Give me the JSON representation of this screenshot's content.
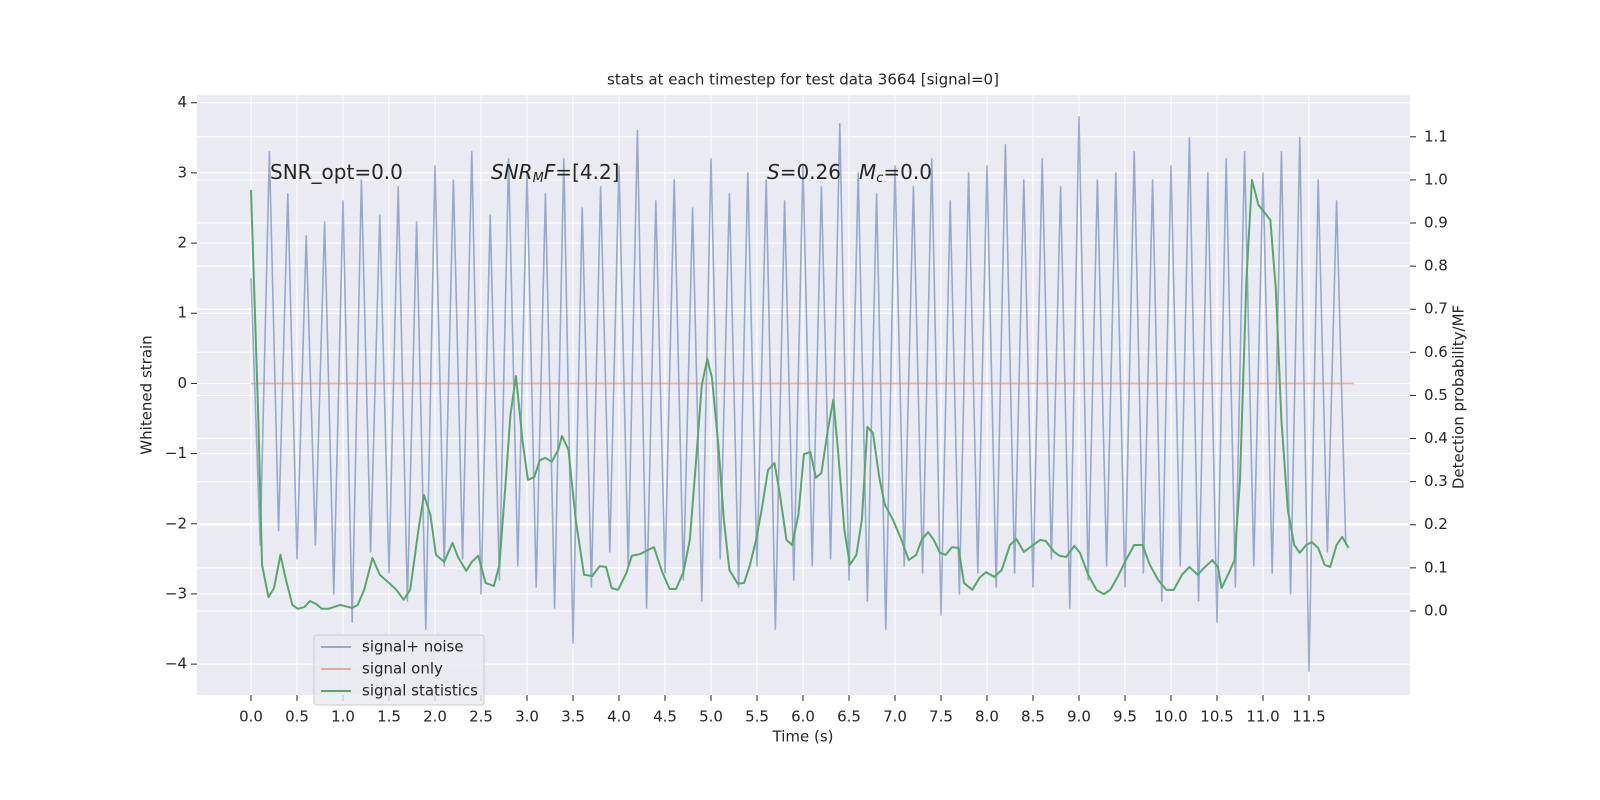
{
  "chart_data": {
    "type": "line",
    "title": "stats at each timestep for test data 3664 [signal=0]",
    "xlabel": "Time (s)",
    "ylabel": "Whitened strain",
    "y2label": "Detection probability/MF",
    "xlim": [
      -0.587,
      12.598
    ],
    "ylim": [
      -4.44,
      4.11
    ],
    "y2lim": [
      -0.195,
      1.197
    ],
    "xticks": [
      {
        "value": 0,
        "label": "0.0"
      },
      0.5,
      {
        "value": 1,
        "label": "1.0"
      },
      1.5,
      {
        "value": 2,
        "label": "2.0"
      },
      2.5,
      {
        "value": 3,
        "label": "3.0"
      },
      3.5,
      {
        "value": 4,
        "label": "4.0"
      },
      4.5,
      {
        "value": 5,
        "label": "5.0"
      },
      5.5,
      {
        "value": 6,
        "label": "6.0"
      },
      6.5,
      {
        "value": 7,
        "label": "7.0"
      },
      7.5,
      {
        "value": 8,
        "label": "8.0"
      },
      8.5,
      {
        "value": 9,
        "label": "9.0"
      },
      9.5,
      {
        "value": 10,
        "label": "10.0"
      },
      10.5,
      {
        "value": 11,
        "label": "11.0"
      },
      11.5
    ],
    "yticks": [
      {
        "value": -4,
        "label": "−4"
      },
      {
        "value": -3,
        "label": "−3"
      },
      {
        "value": -2,
        "label": "−2"
      },
      {
        "value": -1,
        "label": "−1"
      },
      0,
      1,
      2,
      3,
      4
    ],
    "y2ticks": [
      {
        "value": 0,
        "label": "0.0"
      },
      0.1,
      0.2,
      0.3,
      0.4,
      0.5,
      0.6,
      0.7,
      0.8,
      0.9,
      {
        "value": 1,
        "label": "1.0"
      },
      1.1
    ],
    "grid": true,
    "legend_loc": "lower left",
    "annotations": [
      {
        "segments": [
          {
            "text": "SNR_opt=0.0",
            "style": "normal"
          }
        ]
      },
      {
        "segments": [
          {
            "text": "SNR",
            "style": "italic"
          },
          {
            "text": "M",
            "style": "sub"
          },
          {
            "text": "F",
            "style": "italic"
          },
          {
            "text": "=[4.2]",
            "style": "normal"
          }
        ]
      },
      {
        "segments": [
          {
            "text": "S",
            "style": "italic"
          },
          {
            "text": "=0.26",
            "style": "normal"
          }
        ]
      },
      {
        "segments": [
          {
            "text": "M",
            "style": "italic"
          },
          {
            "text": "c",
            "style": "sub"
          },
          {
            "text": "=0.0",
            "style": "normal"
          }
        ]
      }
    ],
    "series": [
      {
        "name": "signal+ noise",
        "color": "#4c72b0",
        "alpha": 0.55,
        "x": [
          0,
          0.1,
          0.2,
          0.3,
          0.4,
          0.5,
          0.6,
          0.7,
          0.8,
          0.9,
          1,
          1.1,
          1.2,
          1.3,
          1.4,
          1.5,
          1.6,
          1.7,
          1.8,
          1.9,
          2,
          2.1,
          2.2,
          2.3,
          2.4,
          2.5,
          2.6,
          2.7,
          2.8,
          2.9,
          3,
          3.1,
          3.2,
          3.3,
          3.4,
          3.5,
          3.6,
          3.7,
          3.8,
          3.9,
          4,
          4.1,
          4.2,
          4.3,
          4.4,
          4.5,
          4.6,
          4.7,
          4.8,
          4.9,
          5,
          5.1,
          5.2,
          5.3,
          5.4,
          5.5,
          5.6,
          5.7,
          5.8,
          5.9,
          6,
          6.1,
          6.2,
          6.3,
          6.4,
          6.5,
          6.6,
          6.7,
          6.8,
          6.9,
          7,
          7.1,
          7.2,
          7.3,
          7.4,
          7.5,
          7.6,
          7.7,
          7.8,
          7.9,
          8,
          8.1,
          8.2,
          8.3,
          8.4,
          8.5,
          8.6,
          8.7,
          8.8,
          8.9,
          9,
          9.1,
          9.2,
          9.3,
          9.4,
          9.5,
          9.6,
          9.7,
          9.8,
          9.9,
          10,
          10.1,
          10.2,
          10.3,
          10.4,
          10.5,
          10.6,
          10.7,
          10.8,
          10.9,
          11,
          11.1,
          11.2,
          11.3,
          11.4,
          11.5,
          11.6,
          11.7,
          11.8,
          11.9
        ],
        "values": [
          1.5,
          -2.3,
          3.3,
          -2.1,
          2.7,
          -2.5,
          2.1,
          -2.3,
          2.3,
          -3.0,
          2.6,
          -3.4,
          2.9,
          -2.4,
          2.4,
          -2.7,
          2.8,
          -3.1,
          2.3,
          -3.5,
          3.1,
          -2.6,
          2.9,
          -2.5,
          3.3,
          -3.0,
          2.4,
          -2.8,
          3.2,
          -2.6,
          3.0,
          -2.9,
          2.7,
          -3.2,
          3.2,
          -3.7,
          2.5,
          -2.9,
          2.8,
          -2.4,
          3.1,
          -2.6,
          3.6,
          -3.2,
          2.6,
          -2.7,
          2.9,
          -2.8,
          2.5,
          -3.1,
          3.2,
          -2.5,
          2.7,
          -2.9,
          3.0,
          -2.6,
          2.9,
          -3.5,
          2.6,
          -2.8,
          3.1,
          -2.6,
          2.8,
          -2.5,
          3.7,
          -2.8,
          3.0,
          -3.1,
          2.7,
          -3.5,
          3.1,
          -2.6,
          2.8,
          -2.7,
          3.2,
          -3.3,
          2.6,
          -3.0,
          3.0,
          -2.7,
          3.1,
          -2.9,
          3.4,
          -2.7,
          2.9,
          -2.9,
          3.2,
          -2.5,
          2.8,
          -3.2,
          3.8,
          -2.8,
          2.9,
          -2.6,
          3.0,
          -2.9,
          3.3,
          -2.7,
          2.9,
          -3.1,
          3.1,
          -2.6,
          3.5,
          -3.1,
          3.0,
          -3.4,
          3.2,
          -2.9,
          3.3,
          -2.6,
          3.0,
          -2.7,
          3.3,
          -3.0,
          3.5,
          -4.1,
          2.9,
          -2.4,
          2.6,
          -2.3
        ]
      },
      {
        "name": "signal only",
        "color": "#dd8452",
        "alpha": 0.6,
        "x": [
          0,
          11.99
        ],
        "values": [
          0,
          0
        ]
      },
      {
        "name": "signal statistics",
        "color": "#55a868",
        "alpha": 1,
        "axis": "y2",
        "x": [
          0,
          0.08,
          0.12,
          0.19,
          0.25,
          0.32,
          0.38,
          0.45,
          0.51,
          0.58,
          0.64,
          0.71,
          0.77,
          0.84,
          0.97,
          1.1,
          1.16,
          1.23,
          1.32,
          1.4,
          1.49,
          1.58,
          1.66,
          1.73,
          1.82,
          1.88,
          1.95,
          2.01,
          2.1,
          2.19,
          2.25,
          2.34,
          2.4,
          2.47,
          2.55,
          2.64,
          2.7,
          2.77,
          2.82,
          2.88,
          2.95,
          3.01,
          3.08,
          3.14,
          3.2,
          3.27,
          3.34,
          3.38,
          3.45,
          3.53,
          3.62,
          3.71,
          3.79,
          3.86,
          3.92,
          3.99,
          4.08,
          4.14,
          4.23,
          4.32,
          4.38,
          4.47,
          4.55,
          4.62,
          4.7,
          4.77,
          4.84,
          4.9,
          4.96,
          5.01,
          5.08,
          5.14,
          5.2,
          5.29,
          5.36,
          5.42,
          5.49,
          5.55,
          5.62,
          5.69,
          5.75,
          5.82,
          5.88,
          5.95,
          6.01,
          6.08,
          6.14,
          6.2,
          6.27,
          6.33,
          6.38,
          6.45,
          6.51,
          6.58,
          6.64,
          6.7,
          6.76,
          6.83,
          6.89,
          6.98,
          7.07,
          7.15,
          7.23,
          7.29,
          7.36,
          7.42,
          7.49,
          7.55,
          7.62,
          7.69,
          7.75,
          7.84,
          7.92,
          7.99,
          8.08,
          8.16,
          8.25,
          8.32,
          8.4,
          8.49,
          8.58,
          8.64,
          8.73,
          8.79,
          8.86,
          8.95,
          9.01,
          9.1,
          9.19,
          9.27,
          9.34,
          9.42,
          9.51,
          9.6,
          9.69,
          9.77,
          9.86,
          9.95,
          10.03,
          10.12,
          10.2,
          10.29,
          10.36,
          10.45,
          10.51,
          10.55,
          10.62,
          10.69,
          10.75,
          10.82,
          10.88,
          10.95,
          11.01,
          11.08,
          11.14,
          11.2,
          11.27,
          11.34,
          11.4,
          11.47,
          11.53,
          11.6,
          11.67,
          11.73,
          11.8,
          11.86,
          11.93
        ],
        "values": [
          0.977,
          0.443,
          0.107,
          0.032,
          0.053,
          0.13,
          0.072,
          0.014,
          0.005,
          0.009,
          0.023,
          0.016,
          0.005,
          0.005,
          0.014,
          0.007,
          0.014,
          0.049,
          0.123,
          0.084,
          0.067,
          0.049,
          0.026,
          0.049,
          0.188,
          0.269,
          0.223,
          0.13,
          0.114,
          0.158,
          0.125,
          0.093,
          0.114,
          0.128,
          0.065,
          0.058,
          0.107,
          0.304,
          0.455,
          0.545,
          0.397,
          0.304,
          0.311,
          0.35,
          0.355,
          0.346,
          0.374,
          0.406,
          0.374,
          0.211,
          0.084,
          0.081,
          0.104,
          0.102,
          0.053,
          0.049,
          0.088,
          0.128,
          0.132,
          0.142,
          0.148,
          0.09,
          0.051,
          0.051,
          0.09,
          0.165,
          0.355,
          0.524,
          0.585,
          0.541,
          0.385,
          0.211,
          0.095,
          0.063,
          0.065,
          0.104,
          0.165,
          0.234,
          0.327,
          0.343,
          0.269,
          0.165,
          0.153,
          0.223,
          0.364,
          0.369,
          0.309,
          0.32,
          0.42,
          0.49,
          0.374,
          0.188,
          0.107,
          0.13,
          0.211,
          0.427,
          0.413,
          0.309,
          0.246,
          0.211,
          0.165,
          0.118,
          0.13,
          0.165,
          0.183,
          0.165,
          0.135,
          0.13,
          0.148,
          0.146,
          0.065,
          0.049,
          0.077,
          0.09,
          0.079,
          0.095,
          0.153,
          0.167,
          0.137,
          0.151,
          0.165,
          0.162,
          0.137,
          0.128,
          0.125,
          0.151,
          0.135,
          0.084,
          0.049,
          0.039,
          0.049,
          0.079,
          0.118,
          0.153,
          0.153,
          0.107,
          0.072,
          0.049,
          0.049,
          0.084,
          0.102,
          0.084,
          0.1,
          0.118,
          0.102,
          0.053,
          0.084,
          0.118,
          0.304,
          0.768,
          1.0,
          0.942,
          0.926,
          0.907,
          0.745,
          0.443,
          0.234,
          0.153,
          0.135,
          0.153,
          0.16,
          0.146,
          0.107,
          0.102,
          0.153,
          0.172,
          0.146
        ]
      }
    ]
  }
}
